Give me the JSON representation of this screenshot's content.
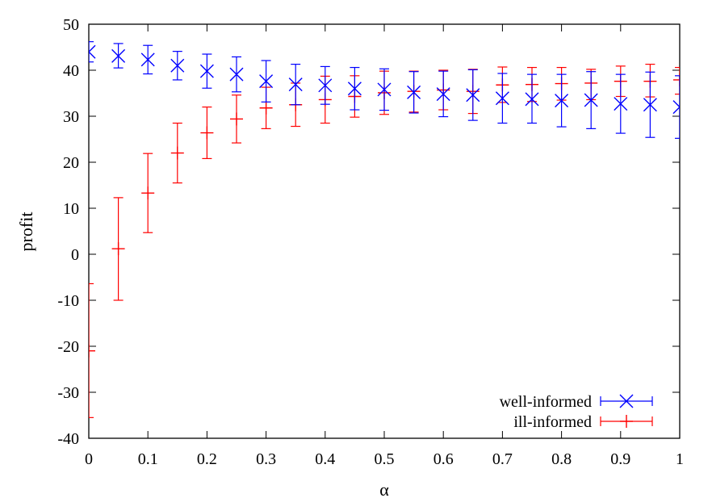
{
  "chart_data": {
    "type": "scatter",
    "xlabel": "α",
    "ylabel": "profit",
    "xlim": [
      0,
      1
    ],
    "ylim": [
      -40,
      50
    ],
    "xticks": [
      "0",
      "0.1",
      "0.2",
      "0.3",
      "0.4",
      "0.5",
      "0.6",
      "0.7",
      "0.8",
      "0.9",
      "1"
    ],
    "yticks": [
      "-40",
      "-30",
      "-20",
      "-10",
      "0",
      "10",
      "20",
      "30",
      "40",
      "50"
    ],
    "grid": false,
    "legend_position": "bottom-right",
    "x": [
      0,
      0.05,
      0.1,
      0.15,
      0.2,
      0.25,
      0.3,
      0.35,
      0.4,
      0.45,
      0.5,
      0.55,
      0.6,
      0.65,
      0.7,
      0.75,
      0.8,
      0.85,
      0.9,
      0.95,
      1.0
    ],
    "series": [
      {
        "name": "well-informed",
        "color": "#0000ff",
        "marker": "x",
        "values": [
          44.0,
          43.1,
          42.3,
          41.0,
          39.8,
          39.1,
          37.6,
          36.9,
          36.7,
          36.0,
          35.8,
          35.2,
          34.8,
          34.6,
          33.9,
          33.7,
          33.4,
          33.5,
          32.7,
          32.5,
          32.0
        ],
        "err_low": [
          41.8,
          40.5,
          39.2,
          37.9,
          36.1,
          35.3,
          33.1,
          32.5,
          32.6,
          31.4,
          31.3,
          30.7,
          29.9,
          29.1,
          28.5,
          28.5,
          27.7,
          27.3,
          26.3,
          25.4,
          25.2
        ],
        "err_high": [
          46.2,
          45.8,
          45.4,
          44.1,
          43.5,
          42.9,
          42.1,
          41.3,
          40.8,
          40.6,
          40.3,
          39.7,
          39.8,
          40.1,
          39.3,
          39.1,
          39.1,
          39.7,
          39.1,
          39.6,
          38.8
        ]
      },
      {
        "name": "ill-informed",
        "color": "#ff0000",
        "marker": "+",
        "values": [
          -21.0,
          1.2,
          13.3,
          22.0,
          26.4,
          29.4,
          31.8,
          32.5,
          33.6,
          34.3,
          35.1,
          35.4,
          35.7,
          35.4,
          36.8,
          36.9,
          37.1,
          37.2,
          37.6,
          37.6,
          37.9
        ],
        "err_low": [
          -35.5,
          -10.0,
          4.7,
          15.5,
          20.8,
          24.2,
          27.3,
          27.8,
          28.5,
          29.8,
          30.4,
          30.9,
          31.4,
          30.6,
          33.0,
          33.2,
          33.5,
          33.6,
          34.3,
          34.2,
          34.8
        ],
        "err_high": [
          -6.4,
          12.3,
          21.9,
          28.5,
          32.0,
          34.6,
          36.3,
          37.2,
          38.7,
          38.8,
          39.8,
          39.8,
          40.0,
          40.2,
          40.7,
          40.6,
          40.6,
          40.2,
          40.9,
          41.3,
          40.6
        ]
      }
    ]
  }
}
